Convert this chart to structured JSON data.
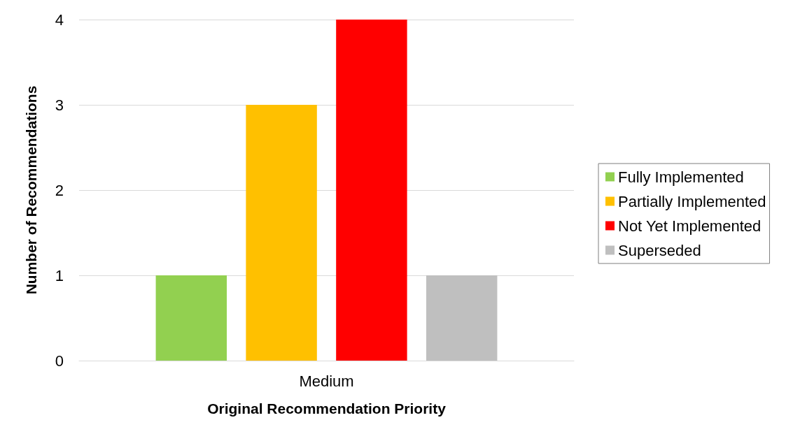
{
  "chart_data": {
    "type": "bar",
    "xlabel": "Original Recommendation Priority",
    "ylabel": "Number of Recommendations",
    "categories": [
      "Medium"
    ],
    "series": [
      {
        "name": "Fully Implemented",
        "color": "#92d050",
        "values": [
          1
        ]
      },
      {
        "name": "Partially Implemented",
        "color": "#ffc000",
        "values": [
          3
        ]
      },
      {
        "name": "Not Yet Implemented",
        "color": "#ff0000",
        "values": [
          4
        ]
      },
      {
        "name": "Superseded",
        "color": "#bfbfbf",
        "values": [
          1
        ]
      }
    ],
    "ylim": [
      0,
      4
    ],
    "yticks": [
      0,
      1,
      2,
      3,
      4
    ],
    "grid": "y",
    "legend": "right"
  }
}
